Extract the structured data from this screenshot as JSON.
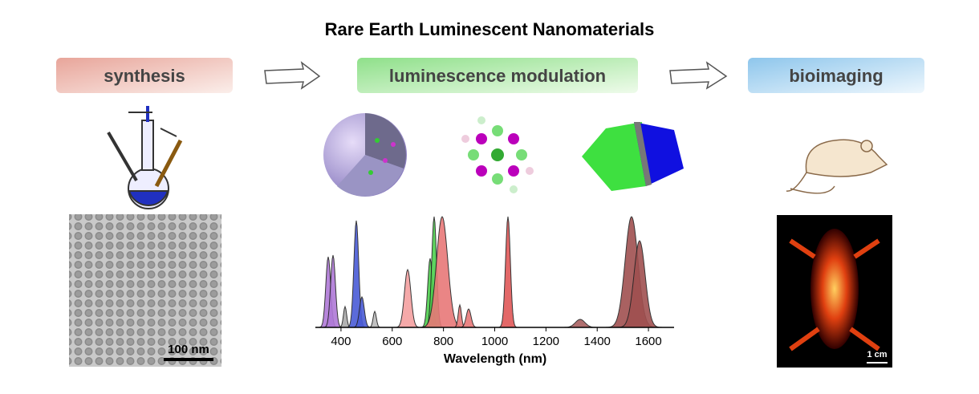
{
  "title": "Rare Earth Luminescent Nanomaterials",
  "stages": [
    {
      "label": "synthesis"
    },
    {
      "label": "luminescence modulation"
    },
    {
      "label": "bioimaging"
    }
  ],
  "tem_scale": "100 nm",
  "imaging_scale": "1 cm",
  "spectrum": {
    "x_label": "Wavelength (nm)",
    "xlim": [
      300,
      1700
    ],
    "xticks": [
      400,
      600,
      800,
      1000,
      1200,
      1400,
      1600
    ]
  }
}
